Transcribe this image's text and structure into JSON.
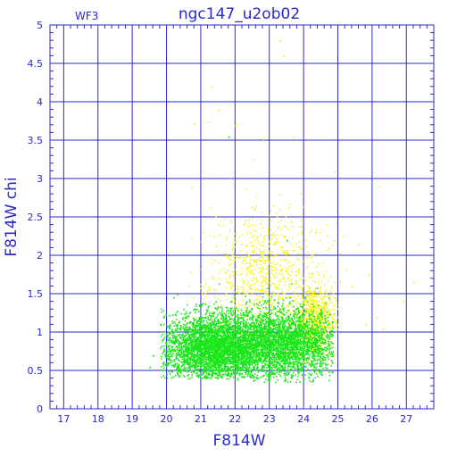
{
  "chart_data": {
    "type": "scatter",
    "title": "ngc147_u2ob02",
    "subtitle": "WF3",
    "xlabel": "F814W",
    "ylabel": "F814W  chi",
    "xlim": [
      16.6,
      27.8
    ],
    "ylim": [
      0,
      5
    ],
    "xticks": [
      "17",
      "18",
      "19",
      "20",
      "21",
      "22",
      "23",
      "24",
      "25",
      "26",
      "27"
    ],
    "yticks": [
      "0",
      "0.5",
      "1",
      "1.5",
      "2",
      "2.5",
      "3",
      "3.5",
      "4",
      "4.5",
      "5"
    ],
    "grid": true,
    "colors": {
      "axis": "#2a2ac8",
      "grid": "#2a2ac8",
      "green": "#19e619",
      "yellow": "#f5f51e"
    },
    "series": [
      {
        "color": "yellow",
        "approx_points": 1500,
        "clusters": [
          {
            "x_mean": 22.9,
            "x_sd": 0.85,
            "y_mean": 1.75,
            "y_sd": 0.45,
            "x_range": [
              20.5,
              25.3
            ],
            "y_range": [
              0.9,
              3.6
            ]
          },
          {
            "x_mean": 24.3,
            "x_sd": 0.3,
            "y_mean": 1.15,
            "y_sd": 0.25,
            "x_range": [
              23.5,
              25.0
            ],
            "y_range": [
              0.6,
              1.8
            ]
          }
        ],
        "notable_points": [
          [
            23.3,
            4.8
          ],
          [
            23.4,
            4.6
          ],
          [
            21.3,
            4.2
          ],
          [
            21.5,
            3.9
          ],
          [
            21.2,
            3.75
          ],
          [
            22.0,
            3.7
          ],
          [
            20.8,
            3.72
          ],
          [
            23.7,
            3.55
          ],
          [
            22.8,
            3.5
          ],
          [
            24.9,
            3.1
          ],
          [
            26.2,
            2.9
          ],
          [
            25.6,
            2.15
          ],
          [
            27.2,
            1.65
          ],
          [
            26.9,
            1.4
          ],
          [
            26.1,
            1.2
          ],
          [
            25.8,
            1.1
          ],
          [
            26.3,
            1.05
          ],
          [
            25.4,
            1.6
          ],
          [
            25.9,
            1.75
          ]
        ]
      },
      {
        "color": "green",
        "approx_points": 6500,
        "clusters": [
          {
            "x_mean": 23.3,
            "x_sd": 0.9,
            "y_mean": 0.85,
            "y_sd": 0.22,
            "x_range": [
              19.9,
              24.85
            ],
            "y_range": [
              0.35,
              2.1
            ]
          },
          {
            "x_mean": 21.3,
            "x_sd": 0.7,
            "y_mean": 0.8,
            "y_sd": 0.22,
            "x_range": [
              19.8,
              23.0
            ],
            "y_range": [
              0.4,
              1.5
            ]
          }
        ],
        "notable_points": [
          [
            21.8,
            3.55
          ],
          [
            19.5,
            0.55
          ],
          [
            19.6,
            0.7
          ],
          [
            19.9,
            1.2
          ],
          [
            20.3,
            1.5
          ],
          [
            23.5,
            2.2
          ]
        ]
      }
    ]
  }
}
